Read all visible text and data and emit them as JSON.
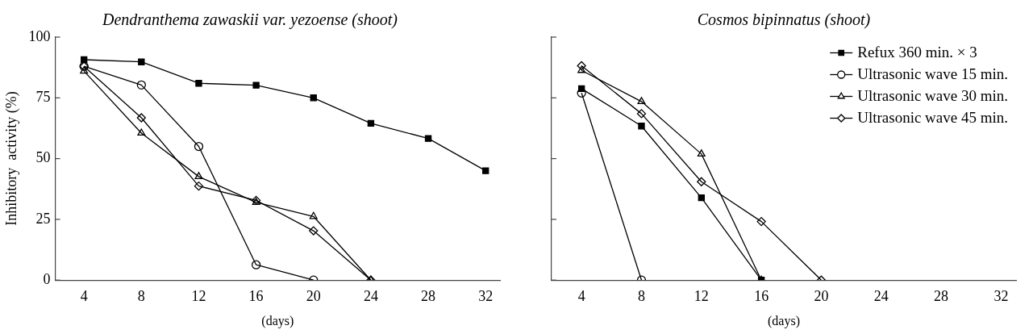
{
  "chart_data": [
    {
      "type": "line",
      "title": "Dendranthema zawaskii var. yezoense (shoot)",
      "xlabel": "(days)",
      "ylabel": "Inhibitory  activity (%)",
      "xlim": [
        2,
        33
      ],
      "xticks": [
        4,
        8,
        12,
        16,
        20,
        24,
        28,
        32
      ],
      "ylim": [
        0,
        100
      ],
      "yticks": [
        0,
        25,
        50,
        75,
        100
      ],
      "grid": false,
      "legend": false,
      "line_style": "solid",
      "series": [
        {
          "color": "#000000",
          "marker": "square",
          "x": [
            4,
            8,
            12,
            16,
            20,
            24,
            28,
            32
          ],
          "values": [
            90.7,
            89.8,
            81,
            80.2,
            75,
            64.5,
            58.3,
            45
          ]
        },
        {
          "color": "#000000",
          "marker": "circle",
          "x": [
            4,
            8,
            12,
            16,
            20
          ],
          "values": [
            88,
            80.3,
            55,
            6.3,
            0
          ]
        },
        {
          "color": "#000000",
          "marker": "triangle",
          "x": [
            4,
            8,
            12,
            16,
            20,
            24
          ],
          "values": [
            86,
            60.5,
            42.6,
            32,
            26.2,
            0
          ]
        },
        {
          "color": "#000000",
          "marker": "diamond",
          "x": [
            4,
            8,
            12,
            16,
            20,
            24
          ],
          "values": [
            88,
            66.8,
            38.7,
            32.8,
            20.3,
            0
          ]
        }
      ]
    },
    {
      "type": "line",
      "title": "Cosmos bipinnatus (shoot)",
      "xlabel": "(days)",
      "xlim": [
        2,
        33
      ],
      "xticks": [
        4,
        8,
        12,
        16,
        20,
        24,
        28,
        32
      ],
      "ylim": [
        0,
        100
      ],
      "yticks": [
        0,
        25,
        50,
        75,
        100
      ],
      "tick_labels": "x",
      "grid": false,
      "legend": "top right",
      "line_style": "solid",
      "series": [
        {
          "name": "Refux 360 min. × 3",
          "color": "#000000",
          "marker": "square",
          "x": [
            4,
            8,
            12,
            16
          ],
          "values": [
            78.8,
            63.4,
            33.9,
            0
          ]
        },
        {
          "name": "Ultrasonic wave 15 min.",
          "color": "#000000",
          "marker": "circle",
          "x": [
            4,
            8
          ],
          "values": [
            77,
            0
          ]
        },
        {
          "name": "Ultrasonic wave 30 min.",
          "color": "#000000",
          "marker": "triangle",
          "x": [
            4,
            8,
            12,
            16
          ],
          "values": [
            86.3,
            73.5,
            51.9,
            0
          ]
        },
        {
          "name": "Ultrasonic wave 45 min.",
          "color": "#000000",
          "marker": "diamond",
          "x": [
            4,
            8,
            12,
            16,
            20
          ],
          "values": [
            88.2,
            68.5,
            40.5,
            24.1,
            0
          ]
        }
      ]
    }
  ]
}
